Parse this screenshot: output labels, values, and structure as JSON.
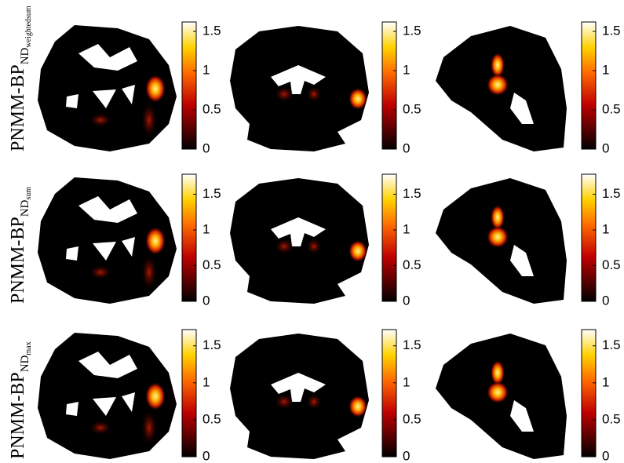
{
  "rows": [
    {
      "label": "PNMM-BP",
      "sub": "ND",
      "subsub": "weightedsum",
      "panels": [
        {
          "clim": [
            0,
            1.62
          ],
          "ticks": [
            0,
            0.5,
            1,
            1.5
          ]
        },
        {
          "clim": [
            0,
            1.62
          ],
          "ticks": [
            0,
            0.5,
            1,
            1.5
          ]
        },
        {
          "clim": [
            0,
            1.62
          ],
          "ticks": [
            0,
            0.5,
            1,
            1.5
          ]
        }
      ]
    },
    {
      "label": "PNMM-BP",
      "sub": "ND",
      "subsub": "sum",
      "panels": [
        {
          "clim": [
            0,
            1.78
          ],
          "ticks": [
            0,
            0.5,
            1,
            1.5
          ]
        },
        {
          "clim": [
            0,
            1.78
          ],
          "ticks": [
            0,
            0.5,
            1,
            1.5
          ]
        },
        {
          "clim": [
            0,
            1.78
          ],
          "ticks": [
            0,
            0.5,
            1,
            1.5
          ]
        }
      ]
    },
    {
      "label": "PNMM-BP",
      "sub": "ND",
      "subsub": "max",
      "panels": [
        {
          "clim": [
            0,
            1.72
          ],
          "ticks": [
            0,
            0.5,
            1,
            1.5
          ]
        },
        {
          "clim": [
            0,
            1.72
          ],
          "ticks": [
            0,
            0.5,
            1,
            1.5
          ]
        },
        {
          "clim": [
            0,
            1.72
          ],
          "ticks": [
            0,
            0.5,
            1,
            1.5
          ]
        }
      ]
    }
  ]
}
